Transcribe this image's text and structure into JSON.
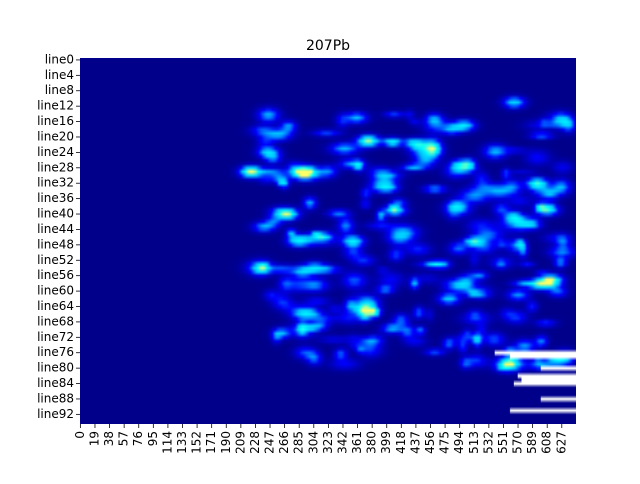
{
  "chart_data": {
    "type": "heatmap",
    "title": "207Pb",
    "xlabel": "",
    "ylabel": "",
    "x_tick_labels": [
      "0",
      "19",
      "38",
      "57",
      "76",
      "95",
      "114",
      "133",
      "152",
      "171",
      "190",
      "209",
      "228",
      "247",
      "266",
      "285",
      "304",
      "323",
      "342",
      "361",
      "380",
      "399",
      "418",
      "437",
      "456",
      "475",
      "494",
      "513",
      "532",
      "551",
      "570",
      "589",
      "608",
      "627"
    ],
    "y_tick_labels": [
      "line0",
      "line4",
      "line8",
      "line12",
      "line16",
      "line20",
      "line24",
      "line28",
      "line32",
      "line36",
      "line40",
      "line44",
      "line48",
      "line52",
      "line56",
      "line60",
      "line64",
      "line68",
      "line72",
      "line76",
      "line80",
      "line84",
      "line88",
      "line92"
    ],
    "n_columns": 646,
    "n_rows": 95,
    "colormap": [
      "#00008b",
      "#0000ff",
      "#00bfff",
      "#00ffff",
      "#ffff66"
    ],
    "missing_color": "#ffffff",
    "grid": false,
    "colorbar": false,
    "hotspots": [
      {
        "row": 29,
        "col": 222,
        "value": 0.95
      },
      {
        "row": 29,
        "col": 290,
        "value": 0.75
      },
      {
        "row": 24,
        "col": 245,
        "value": 0.6
      },
      {
        "row": 40,
        "col": 270,
        "value": 0.85
      },
      {
        "row": 47,
        "col": 283,
        "value": 0.6
      },
      {
        "row": 47,
        "col": 355,
        "value": 0.7
      },
      {
        "row": 21,
        "col": 375,
        "value": 0.9
      },
      {
        "row": 33,
        "col": 400,
        "value": 0.6
      },
      {
        "row": 39,
        "col": 410,
        "value": 0.65
      },
      {
        "row": 22,
        "col": 440,
        "value": 0.55
      },
      {
        "row": 17,
        "col": 500,
        "value": 0.65
      },
      {
        "row": 11,
        "col": 565,
        "value": 0.6
      },
      {
        "row": 32,
        "col": 595,
        "value": 0.7
      },
      {
        "row": 39,
        "col": 610,
        "value": 0.5
      },
      {
        "row": 55,
        "col": 290,
        "value": 0.5
      },
      {
        "row": 57,
        "col": 615,
        "value": 0.6
      },
      {
        "row": 62,
        "col": 480,
        "value": 0.55
      },
      {
        "row": 65,
        "col": 375,
        "value": 0.6
      },
      {
        "row": 61,
        "col": 570,
        "value": 0.45
      },
      {
        "row": 15,
        "col": 360,
        "value": 0.5
      }
    ]
  }
}
